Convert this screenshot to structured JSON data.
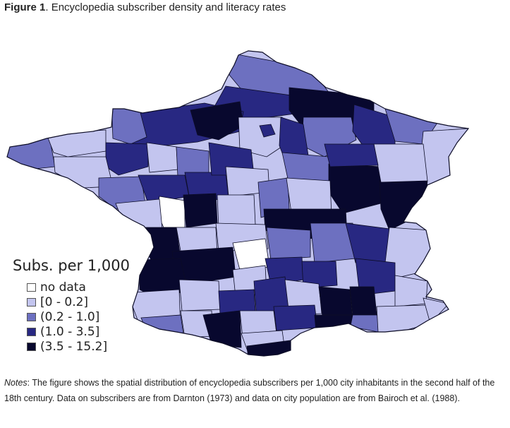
{
  "title": {
    "label": "Figure 1",
    "text": ". Encyclopedia subscriber density and literacy rates"
  },
  "legend": {
    "title": "Subs. per 1,000",
    "items": [
      {
        "label": "no data",
        "color": "#ffffff"
      },
      {
        "label": "[0 - 0.2]",
        "color": "#c3c5ef"
      },
      {
        "label": "(0.2 - 1.0]",
        "color": "#6d70c0"
      },
      {
        "label": "(1.0 - 3.5]",
        "color": "#282882"
      },
      {
        "label": "(3.5 - 15.2]",
        "color": "#08082e"
      }
    ]
  },
  "colors": {
    "border": "#0c0c26",
    "nodata": "#ffffff",
    "class1": "#c3c5ef",
    "class2": "#6d70c0",
    "class3": "#282882",
    "class4": "#08082e"
  },
  "notes": {
    "label": "Notes",
    "text": ": The figure shows the spatial distribution of encyclopedia subscribers per 1,000 city inhabitants in the second half of the 18th century. Data on subscribers are from Darnton (1973) and data on city population are from Bairoch et al. (1988)."
  }
}
